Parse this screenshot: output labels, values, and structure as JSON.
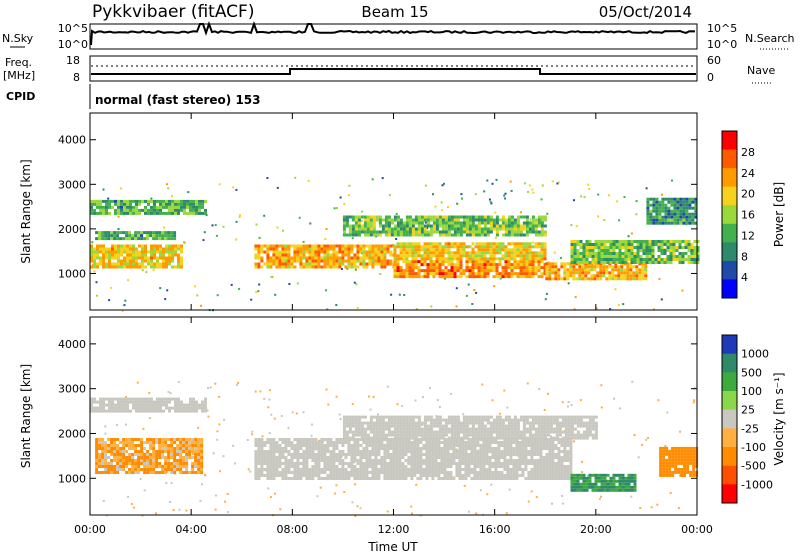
{
  "header": {
    "station": "Pykkvibaer (fitACF)",
    "beam": "Beam 15",
    "date": "05/Oct/2014"
  },
  "status_panels": {
    "nsky_label": "N.Sky",
    "nsearch_label": "N.Search",
    "freq_label_1": "Freq.",
    "freq_label_2": "[MHz]",
    "nave_label": "Nave",
    "cpid_label": "CPID",
    "noise_ticks": [
      "10^5",
      "10^0"
    ],
    "freq_ticks": [
      "18",
      "8"
    ],
    "nave_ticks": [
      "60",
      "0"
    ],
    "cpid_text": "normal (fast stereo) 153"
  },
  "chart_data": [
    {
      "type": "heatmap",
      "name": "Power",
      "xlabel": "Time UT",
      "ylabel": "Slant Range [km]",
      "xlim": [
        0,
        24
      ],
      "ylim": [
        180,
        4600
      ],
      "x_ticks": [
        "00:00",
        "04:00",
        "08:00",
        "12:00",
        "16:00",
        "20:00",
        "00:00"
      ],
      "y_ticks": [
        1000,
        2000,
        3000,
        4000
      ],
      "colorbar": {
        "label": "Power [dB]",
        "ticks": [
          "28",
          "24",
          "20",
          "16",
          "12",
          "8",
          "4"
        ],
        "colors": [
          "#ff0000",
          "#ff5a00",
          "#ff9a00",
          "#f4d21e",
          "#9ad83c",
          "#43b04e",
          "#2e8a6a",
          "#1f4aa8",
          "#0000ff"
        ]
      },
      "bands": [
        {
          "t0": 0.0,
          "t1": 3.6,
          "r0": 1150,
          "r1": 1650,
          "value": 20
        },
        {
          "t0": 0.2,
          "t1": 3.3,
          "r0": 1750,
          "r1": 1950,
          "value": 12
        },
        {
          "t0": 0.0,
          "t1": 4.6,
          "r0": 2350,
          "r1": 2650,
          "value": 12
        },
        {
          "t0": 6.5,
          "t1": 12.0,
          "r0": 1150,
          "r1": 1650,
          "value": 22
        },
        {
          "t0": 12.0,
          "t1": 18.0,
          "r0": 900,
          "r1": 1300,
          "value": 24
        },
        {
          "t0": 12.0,
          "t1": 18.0,
          "r0": 1300,
          "r1": 1700,
          "value": 20
        },
        {
          "t0": 10.0,
          "t1": 18.0,
          "r0": 1850,
          "r1": 2300,
          "value": 14
        },
        {
          "t0": 18.0,
          "t1": 22.0,
          "r0": 850,
          "r1": 1250,
          "value": 22
        },
        {
          "t0": 19.0,
          "t1": 24.0,
          "r0": 1250,
          "r1": 1750,
          "value": 14
        },
        {
          "t0": 22.0,
          "t1": 24.0,
          "r0": 2100,
          "r1": 2700,
          "value": 10
        }
      ]
    },
    {
      "type": "heatmap",
      "name": "Velocity",
      "xlabel": "Time UT",
      "ylabel": "Slant Range [km]",
      "xlim": [
        0,
        24
      ],
      "ylim": [
        180,
        4600
      ],
      "x_ticks": [
        "00:00",
        "04:00",
        "08:00",
        "12:00",
        "16:00",
        "20:00",
        "00:00"
      ],
      "y_ticks": [
        1000,
        2000,
        3000,
        4000
      ],
      "colorbar": {
        "label": "Velocity [m s⁻¹]",
        "ticks": [
          "1000",
          "500",
          "100",
          "25",
          "-25",
          "-100",
          "-500",
          "-1000"
        ],
        "colors": [
          "#1f3ab8",
          "#2e8a6a",
          "#3caa3c",
          "#8ad84a",
          "#c8c8c0",
          "#ffb040",
          "#ff8c00",
          "#ff5000",
          "#ff0000"
        ]
      },
      "bands": [
        {
          "t0": 0.2,
          "t1": 4.4,
          "r0": 1100,
          "r1": 1900,
          "value": -100
        },
        {
          "t0": 0.0,
          "t1": 4.6,
          "r0": 2500,
          "r1": 2800,
          "value": 0
        },
        {
          "t0": 6.5,
          "t1": 19.0,
          "r0": 1000,
          "r1": 1900,
          "value": 0
        },
        {
          "t0": 10.0,
          "t1": 20.0,
          "r0": 1900,
          "r1": 2400,
          "value": 0
        },
        {
          "t0": 19.0,
          "t1": 21.5,
          "r0": 700,
          "r1": 1100,
          "value": 500
        },
        {
          "t0": 22.5,
          "t1": 24.0,
          "r0": 1050,
          "r1": 1700,
          "value": -300
        }
      ]
    }
  ]
}
